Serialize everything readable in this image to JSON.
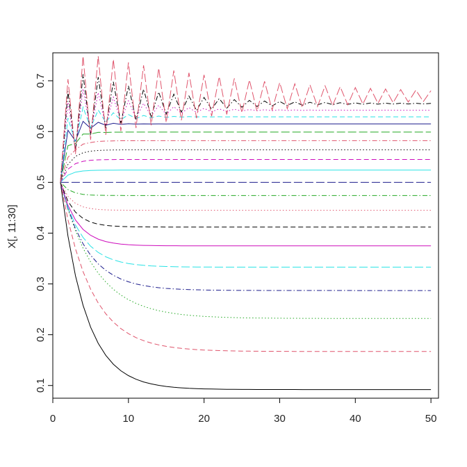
{
  "chart_data": {
    "type": "line",
    "title": "",
    "xlabel": "",
    "ylabel": "X[, 11:30]",
    "xlim": [
      0,
      51
    ],
    "ylim": [
      0.075,
      0.755
    ],
    "x_ticks": [
      {
        "value": 0,
        "label": "0"
      },
      {
        "value": 10,
        "label": "10"
      },
      {
        "value": 20,
        "label": "20"
      },
      {
        "value": 30,
        "label": "30"
      },
      {
        "value": 40,
        "label": "40"
      },
      {
        "value": 50,
        "label": "50"
      }
    ],
    "y_ticks": [
      {
        "value": 0.1,
        "label": "0.1"
      },
      {
        "value": 0.2,
        "label": "0.2"
      },
      {
        "value": 0.3,
        "label": "0.3"
      },
      {
        "value": 0.4,
        "label": "0.4"
      },
      {
        "value": 0.5,
        "label": "0.5"
      },
      {
        "value": 0.6,
        "label": "0.6"
      },
      {
        "value": 0.7,
        "label": "0.7"
      }
    ],
    "grid": false,
    "legend": "none",
    "x_values": [
      1,
      50
    ],
    "series": [
      {
        "color": "#000000",
        "lty": "solid",
        "start": 0.5,
        "steady": 0.092,
        "rate": 0.3,
        "osc": 0,
        "osc_decay": 1
      },
      {
        "color": "#DF536B",
        "lty": "dashed",
        "start": 0.5,
        "steady": 0.167,
        "rate": 0.25,
        "osc": 0,
        "osc_decay": 1
      },
      {
        "color": "#22A822",
        "lty": "dotted",
        "start": 0.5,
        "steady": 0.232,
        "rate": 0.22,
        "osc": 0,
        "osc_decay": 1
      },
      {
        "color": "#1C1C8C",
        "lty": "dotdash",
        "start": 0.5,
        "steady": 0.287,
        "rate": 0.28,
        "osc": 0,
        "osc_decay": 1
      },
      {
        "color": "#28E2E5",
        "lty": "longdash",
        "start": 0.5,
        "steady": 0.333,
        "rate": 0.35,
        "osc": 0,
        "osc_decay": 1
      },
      {
        "color": "#CD0BBC",
        "lty": "solid",
        "start": 0.5,
        "steady": 0.375,
        "rate": 0.45,
        "osc": 0,
        "osc_decay": 1
      },
      {
        "color": "#000000",
        "lty": "dashed",
        "start": 0.5,
        "steady": 0.412,
        "rate": 0.55,
        "osc": 0,
        "osc_decay": 1
      },
      {
        "color": "#DF536B",
        "lty": "dotted",
        "start": 0.5,
        "steady": 0.445,
        "rate": 0.7,
        "osc": 0,
        "osc_decay": 1
      },
      {
        "color": "#22A822",
        "lty": "dotdash",
        "start": 0.5,
        "steady": 0.474,
        "rate": 0.8,
        "osc": 0,
        "osc_decay": 1
      },
      {
        "color": "#1C1C8C",
        "lty": "longdash",
        "start": 0.5,
        "steady": 0.5,
        "rate": 1,
        "osc": 0,
        "osc_decay": 1
      },
      {
        "color": "#28E2E5",
        "lty": "solid",
        "start": 0.5,
        "steady": 0.524,
        "rate": 0.9,
        "osc": 0,
        "osc_decay": 1
      },
      {
        "color": "#CD0BBC",
        "lty": "dashed",
        "start": 0.5,
        "steady": 0.545,
        "rate": 0.85,
        "osc": 0,
        "osc_decay": 1
      },
      {
        "color": "#000000",
        "lty": "dotted",
        "start": 0.5,
        "steady": 0.564,
        "rate": 0.8,
        "osc": 0,
        "osc_decay": 1
      },
      {
        "color": "#DF536B",
        "lty": "dotdash",
        "start": 0.5,
        "steady": 0.582,
        "rate": 0.8,
        "osc": 0.01,
        "osc_decay": 0.4
      },
      {
        "color": "#22A822",
        "lty": "longdash",
        "start": 0.5,
        "steady": 0.599,
        "rate": 0.9,
        "osc": 0.03,
        "osc_decay": 0.45
      },
      {
        "color": "#1C1C8C",
        "lty": "solid",
        "start": 0.5,
        "steady": 0.615,
        "rate": 1,
        "osc": 0.05,
        "osc_decay": 0.6
      },
      {
        "color": "#28E2E5",
        "lty": "dashed",
        "start": 0.5,
        "steady": 0.629,
        "rate": 1,
        "osc": 0.06,
        "osc_decay": 0.75
      },
      {
        "color": "#CD0BBC",
        "lty": "dotted",
        "start": 0.5,
        "steady": 0.642,
        "rate": 1,
        "osc": 0.08,
        "osc_decay": 0.85
      },
      {
        "color": "#000000",
        "lty": "dotdash",
        "start": 0.5,
        "steady": 0.655,
        "rate": 1,
        "osc": 0.09,
        "osc_decay": 0.9
      },
      {
        "color": "#DF536B",
        "lty": "longdash",
        "start": 0.5,
        "steady": 0.67,
        "rate": 1,
        "osc": 0.1,
        "osc_decay": 0.955
      }
    ]
  }
}
